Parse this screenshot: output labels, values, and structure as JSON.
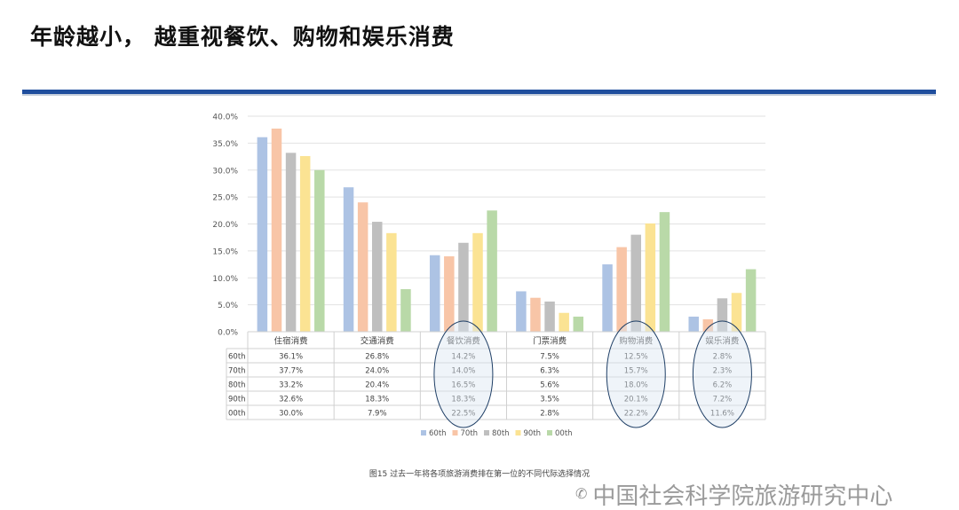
{
  "page": {
    "title": "年龄越小， 越重视餐饮、购物和娱乐消费",
    "caption": "图15 过去一年将各项旅游消费排在第一位的不同代际选择情况",
    "watermark": "中国社会科学院旅游研究中心",
    "watermark_icon": "wechat-icon"
  },
  "colors": {
    "rule": "#1f4e9d",
    "60th": "#adc3e4",
    "70th": "#f8c5a7",
    "80th": "#bfbfbf",
    "90th": "#fbe393",
    "00th": "#b9d9a8",
    "highlight_ellipse": "#1f3f66"
  },
  "chart_data": {
    "type": "bar",
    "categories": [
      "住宿消费",
      "交通消费",
      "餐饮消费",
      "门票消费",
      "购物消费",
      "娱乐消费"
    ],
    "series": [
      {
        "name": "60th",
        "values": [
          36.1,
          26.8,
          14.2,
          7.5,
          12.5,
          2.8
        ]
      },
      {
        "name": "70th",
        "values": [
          37.7,
          24.0,
          14.0,
          6.3,
          15.7,
          2.3
        ]
      },
      {
        "name": "80th",
        "values": [
          33.2,
          20.4,
          16.5,
          5.6,
          18.0,
          6.2
        ]
      },
      {
        "name": "90th",
        "values": [
          32.6,
          18.3,
          18.3,
          3.5,
          20.1,
          7.2
        ]
      },
      {
        "name": "00th",
        "values": [
          30.0,
          7.9,
          22.5,
          2.8,
          22.2,
          11.6
        ]
      }
    ],
    "value_format": "percent_one_decimal",
    "y_ticks": [
      "0.0%",
      "5.0%",
      "10.0%",
      "15.0%",
      "20.0%",
      "25.0%",
      "30.0%",
      "35.0%",
      "40.0%"
    ],
    "ylim": [
      0,
      40
    ],
    "grid": true,
    "data_table": true,
    "legend_position": "bottom",
    "highlighted_categories": [
      "餐饮消费",
      "购物消费",
      "娱乐消费"
    ]
  }
}
